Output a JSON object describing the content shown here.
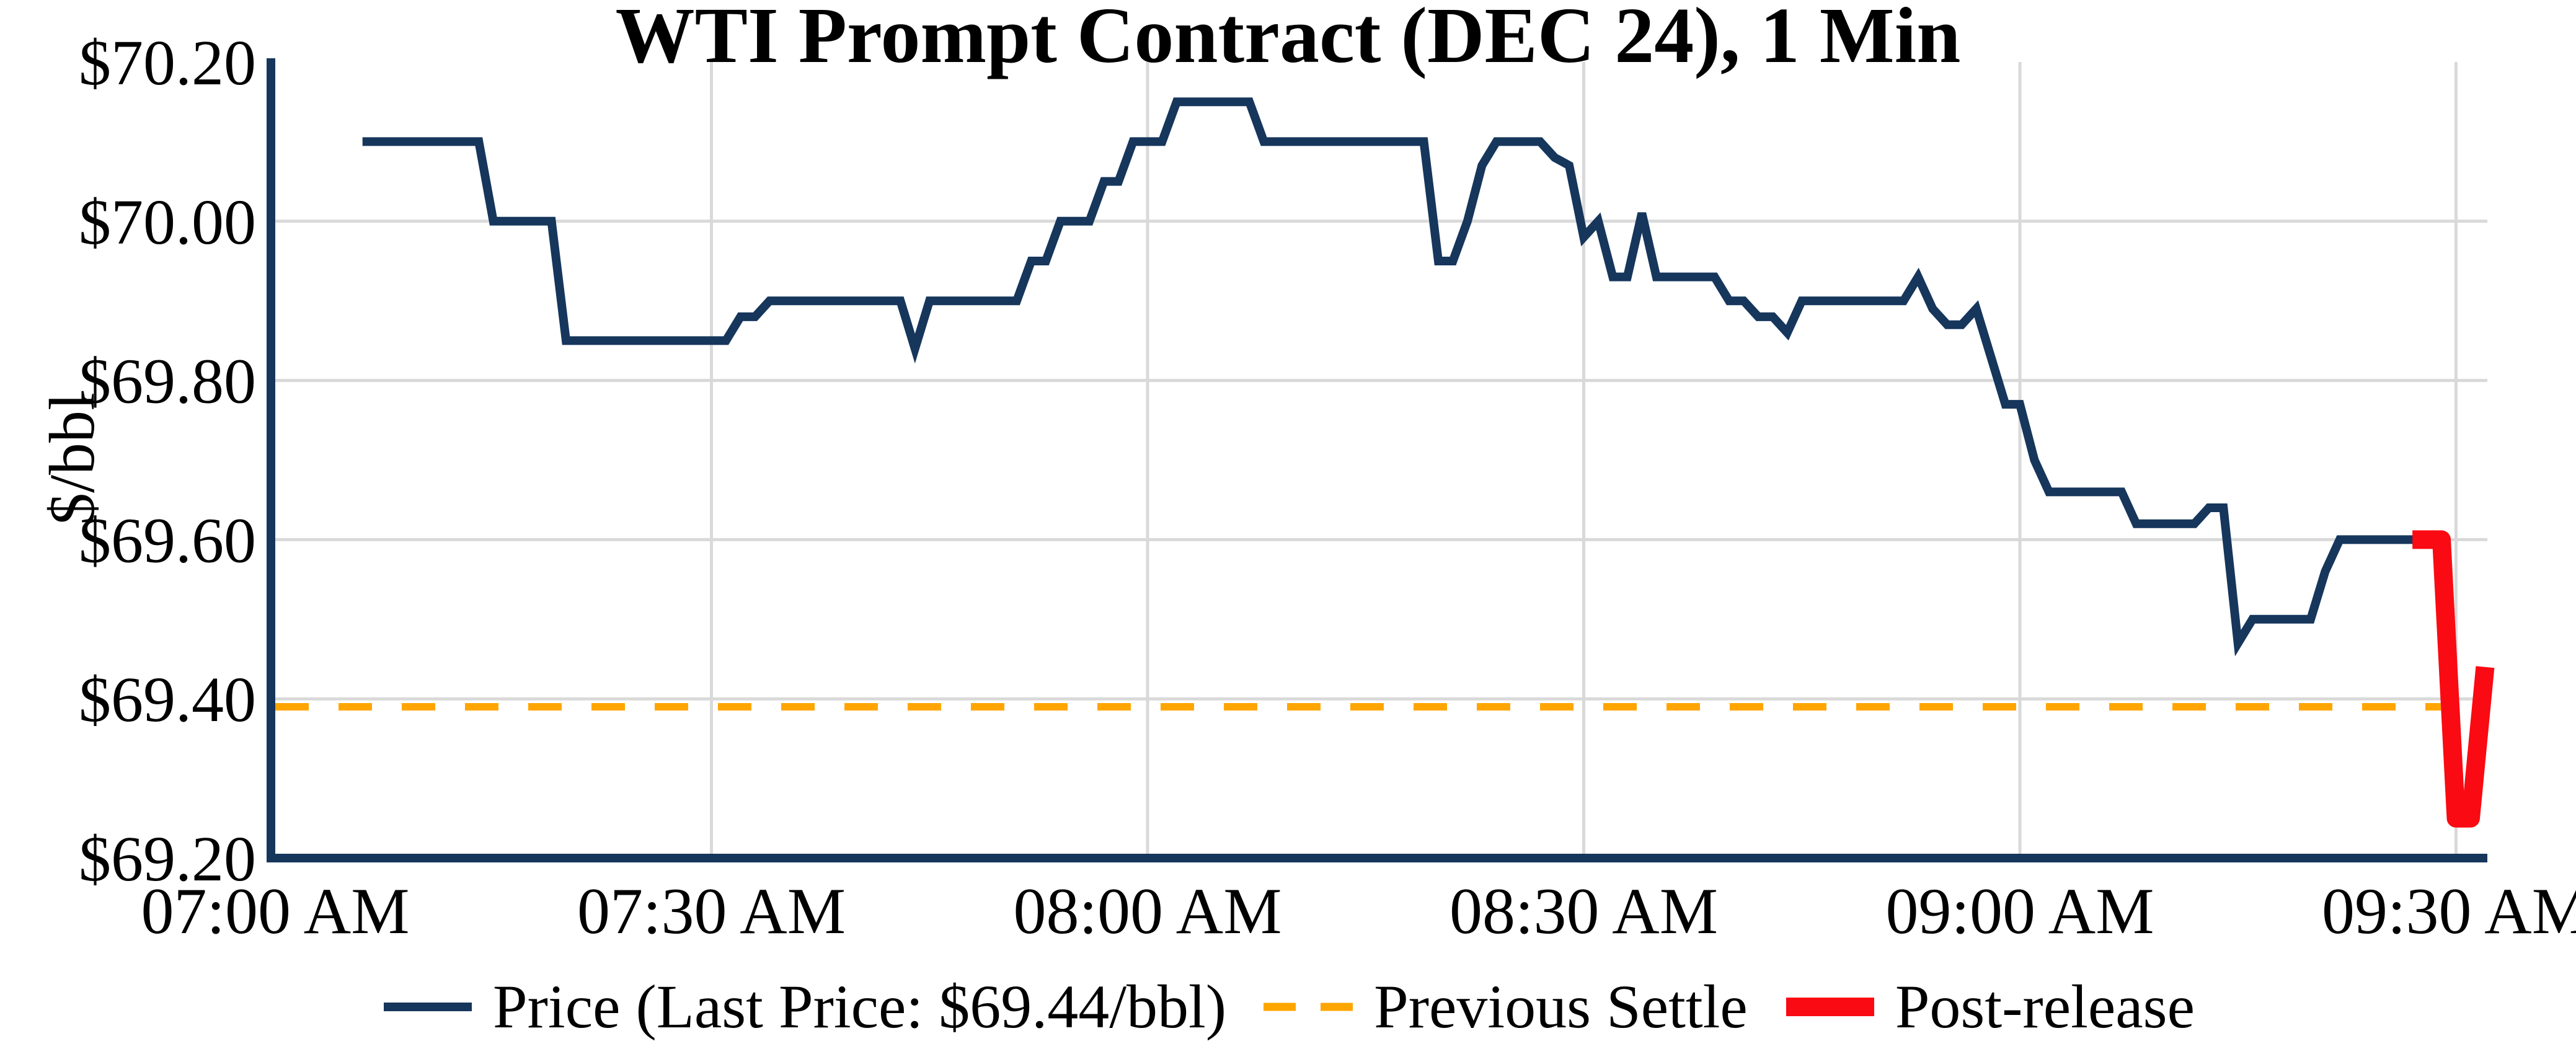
{
  "title": "WTI Prompt Contract (DEC 24), 1 Min",
  "y_axis": {
    "label": "$/bbl",
    "ticks": [
      {
        "label": "$70.20",
        "value": 70.2
      },
      {
        "label": "$70.00",
        "value": 70.0
      },
      {
        "label": "$69.80",
        "value": 69.8
      },
      {
        "label": "$69.60",
        "value": 69.6
      },
      {
        "label": "$69.40",
        "value": 69.4
      },
      {
        "label": "$69.20",
        "value": 69.2
      }
    ]
  },
  "x_axis": {
    "ticks": [
      {
        "label": "07:00 AM",
        "minutes": 0
      },
      {
        "label": "07:30 AM",
        "minutes": 30
      },
      {
        "label": "08:00 AM",
        "minutes": 60
      },
      {
        "label": "08:30 AM",
        "minutes": 90
      },
      {
        "label": "09:00 AM",
        "minutes": 120
      },
      {
        "label": "09:30 AM",
        "minutes": 150
      }
    ]
  },
  "colors": {
    "price": "#16365c",
    "previous_settle": "#ffa500",
    "post_release": "#fa0a12",
    "grid": "#d9d9d9",
    "axis": "#16365c",
    "background": "#ffffff"
  },
  "last_price_label": "$69.44/bbl",
  "previous_settle_value": 69.39,
  "chart_data": {
    "type": "line",
    "title": "WTI Prompt Contract (DEC 24), 1 Min",
    "xlabel": "",
    "ylabel": "$/bbl",
    "ylim": [
      69.2,
      70.2
    ],
    "x_start": "07:00 AM",
    "x_end": "09:32 AM",
    "grid": true,
    "legend_position": "bottom",
    "series": [
      {
        "name": "Price (Last Price: $69.44/bbl)",
        "style": "solid",
        "color": "#16365c",
        "width": 14,
        "points": [
          [
            "07:06",
            70.1
          ],
          [
            "07:07",
            70.1
          ],
          [
            "07:08",
            70.1
          ],
          [
            "07:09",
            70.1
          ],
          [
            "07:10",
            70.1
          ],
          [
            "07:11",
            70.1
          ],
          [
            "07:12",
            70.1
          ],
          [
            "07:13",
            70.1
          ],
          [
            "07:14",
            70.1
          ],
          [
            "07:15",
            70.0
          ],
          [
            "07:16",
            70.0
          ],
          [
            "07:17",
            70.0
          ],
          [
            "07:18",
            70.0
          ],
          [
            "07:19",
            70.0
          ],
          [
            "07:20",
            69.85
          ],
          [
            "07:21",
            69.85
          ],
          [
            "07:22",
            69.85
          ],
          [
            "07:23",
            69.85
          ],
          [
            "07:24",
            69.85
          ],
          [
            "07:25",
            69.85
          ],
          [
            "07:26",
            69.85
          ],
          [
            "07:27",
            69.85
          ],
          [
            "07:28",
            69.85
          ],
          [
            "07:29",
            69.85
          ],
          [
            "07:30",
            69.85
          ],
          [
            "07:31",
            69.85
          ],
          [
            "07:32",
            69.88
          ],
          [
            "07:33",
            69.88
          ],
          [
            "07:34",
            69.9
          ],
          [
            "07:35",
            69.9
          ],
          [
            "07:36",
            69.9
          ],
          [
            "07:37",
            69.9
          ],
          [
            "07:38",
            69.9
          ],
          [
            "07:39",
            69.9
          ],
          [
            "07:40",
            69.9
          ],
          [
            "07:41",
            69.9
          ],
          [
            "07:42",
            69.9
          ],
          [
            "07:43",
            69.9
          ],
          [
            "07:44",
            69.84
          ],
          [
            "07:45",
            69.9
          ],
          [
            "07:46",
            69.9
          ],
          [
            "07:47",
            69.9
          ],
          [
            "07:48",
            69.9
          ],
          [
            "07:49",
            69.9
          ],
          [
            "07:50",
            69.9
          ],
          [
            "07:51",
            69.9
          ],
          [
            "07:52",
            69.95
          ],
          [
            "07:53",
            69.95
          ],
          [
            "07:54",
            70.0
          ],
          [
            "07:55",
            70.0
          ],
          [
            "07:56",
            70.0
          ],
          [
            "07:57",
            70.05
          ],
          [
            "07:58",
            70.05
          ],
          [
            "07:59",
            70.1
          ],
          [
            "08:00",
            70.1
          ],
          [
            "08:01",
            70.1
          ],
          [
            "08:02",
            70.15
          ],
          [
            "08:03",
            70.15
          ],
          [
            "08:04",
            70.15
          ],
          [
            "08:05",
            70.15
          ],
          [
            "08:06",
            70.15
          ],
          [
            "08:07",
            70.15
          ],
          [
            "08:08",
            70.1
          ],
          [
            "08:09",
            70.1
          ],
          [
            "08:10",
            70.1
          ],
          [
            "08:11",
            70.1
          ],
          [
            "08:12",
            70.1
          ],
          [
            "08:13",
            70.1
          ],
          [
            "08:14",
            70.1
          ],
          [
            "08:15",
            70.1
          ],
          [
            "08:16",
            70.1
          ],
          [
            "08:17",
            70.1
          ],
          [
            "08:18",
            70.1
          ],
          [
            "08:19",
            70.1
          ],
          [
            "08:20",
            69.95
          ],
          [
            "08:21",
            69.95
          ],
          [
            "08:22",
            70.0
          ],
          [
            "08:23",
            70.07
          ],
          [
            "08:24",
            70.1
          ],
          [
            "08:25",
            70.1
          ],
          [
            "08:26",
            70.1
          ],
          [
            "08:27",
            70.1
          ],
          [
            "08:28",
            70.08
          ],
          [
            "08:29",
            70.07
          ],
          [
            "08:30",
            69.98
          ],
          [
            "08:31",
            70.0
          ],
          [
            "08:32",
            69.93
          ],
          [
            "08:33",
            69.93
          ],
          [
            "08:34",
            70.01
          ],
          [
            "08:35",
            69.93
          ],
          [
            "08:36",
            69.93
          ],
          [
            "08:37",
            69.93
          ],
          [
            "08:38",
            69.93
          ],
          [
            "08:39",
            69.93
          ],
          [
            "08:40",
            69.9
          ],
          [
            "08:41",
            69.9
          ],
          [
            "08:42",
            69.88
          ],
          [
            "08:43",
            69.88
          ],
          [
            "08:44",
            69.86
          ],
          [
            "08:45",
            69.9
          ],
          [
            "08:46",
            69.9
          ],
          [
            "08:47",
            69.9
          ],
          [
            "08:48",
            69.9
          ],
          [
            "08:49",
            69.9
          ],
          [
            "08:50",
            69.9
          ],
          [
            "08:51",
            69.9
          ],
          [
            "08:52",
            69.9
          ],
          [
            "08:53",
            69.93
          ],
          [
            "08:54",
            69.89
          ],
          [
            "08:55",
            69.87
          ],
          [
            "08:56",
            69.87
          ],
          [
            "08:57",
            69.89
          ],
          [
            "08:58",
            69.83
          ],
          [
            "08:59",
            69.77
          ],
          [
            "09:00",
            69.77
          ],
          [
            "09:01",
            69.7
          ],
          [
            "09:02",
            69.66
          ],
          [
            "09:03",
            69.66
          ],
          [
            "09:04",
            69.66
          ],
          [
            "09:05",
            69.66
          ],
          [
            "09:06",
            69.66
          ],
          [
            "09:07",
            69.66
          ],
          [
            "09:08",
            69.62
          ],
          [
            "09:09",
            69.62
          ],
          [
            "09:10",
            69.62
          ],
          [
            "09:11",
            69.62
          ],
          [
            "09:12",
            69.62
          ],
          [
            "09:13",
            69.64
          ],
          [
            "09:14",
            69.64
          ],
          [
            "09:15",
            69.47
          ],
          [
            "09:16",
            69.5
          ],
          [
            "09:17",
            69.5
          ],
          [
            "09:18",
            69.5
          ],
          [
            "09:19",
            69.5
          ],
          [
            "09:20",
            69.5
          ],
          [
            "09:21",
            69.56
          ],
          [
            "09:22",
            69.6
          ],
          [
            "09:23",
            69.6
          ],
          [
            "09:24",
            69.6
          ],
          [
            "09:25",
            69.6
          ],
          [
            "09:26",
            69.6
          ],
          [
            "09:27",
            69.6
          ],
          [
            "09:28",
            69.6
          ]
        ]
      },
      {
        "name": "Previous Settle",
        "style": "dashed",
        "color": "#ffa500",
        "width": 12,
        "value": 69.39,
        "x_range_minutes": [
          0,
          151
        ]
      },
      {
        "name": "Post-release",
        "style": "solid",
        "color": "#fa0a12",
        "width": 30,
        "points": [
          [
            "09:27",
            69.6
          ],
          [
            "09:28",
            69.6
          ],
          [
            "09:29",
            69.6
          ],
          [
            "09:30",
            69.25
          ],
          [
            "09:31",
            69.25
          ],
          [
            "09:32",
            69.44
          ]
        ]
      }
    ]
  }
}
